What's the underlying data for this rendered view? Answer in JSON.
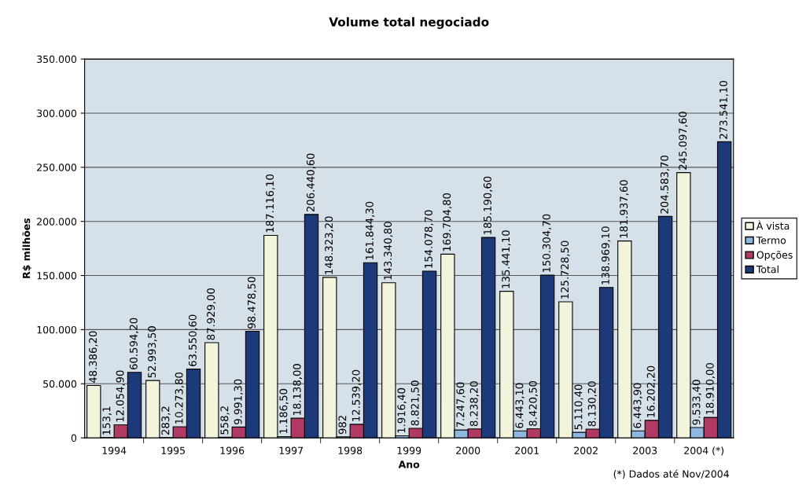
{
  "chart_data": {
    "type": "bar",
    "title": "Volume total negociado",
    "xlabel": "Ano",
    "ylabel": "R$ milhões",
    "categories": [
      "1994",
      "1995",
      "1996",
      "1997",
      "1998",
      "1999",
      "2000",
      "2001",
      "2002",
      "2003",
      "2004 (*)"
    ],
    "series": [
      {
        "name": "À vista",
        "color": "#f2f5dc",
        "values": [
          48386.2,
          52993.5,
          87929.0,
          187116.1,
          148323.2,
          143340.8,
          169704.8,
          135441.1,
          125728.5,
          181937.6,
          245097.6
        ],
        "value_labels": [
          "48.386,20",
          "52.993,50",
          "87.929,00",
          "187.116,10",
          "148.323,20",
          "143.340,80",
          "169.704,80",
          "135.441,10",
          "125.728,50",
          "181.937,60",
          "245.097,60"
        ]
      },
      {
        "name": "Termo",
        "color": "#8fb8e0",
        "values": [
          153.1,
          283.2,
          558.2,
          1186.5,
          982,
          1916.4,
          7247.6,
          6443.1,
          5110.4,
          6443.9,
          9533.4
        ],
        "value_labels": [
          "153,1",
          "283,2",
          "558,2",
          "1.186,50",
          "982",
          "1.916,40",
          "7.247,60",
          "6.443,10",
          "5.110,40",
          "6.443,90",
          "9.533,40"
        ]
      },
      {
        "name": "Opções",
        "color": "#b03a64",
        "values": [
          12054.9,
          10273.8,
          9991.3,
          18138.0,
          12539.2,
          8821.5,
          8238.2,
          8420.5,
          8130.2,
          16202.2,
          18910.0
        ],
        "value_labels": [
          "12.054,90",
          "10.273,80",
          "9.991,30",
          "18.138,00",
          "12.539,20",
          "8.821,50",
          "8.238,20",
          "8.420,50",
          "8.130,20",
          "16.202,20",
          "18.910,00"
        ]
      },
      {
        "name": "Total",
        "color": "#1c3a7a",
        "values": [
          60594.2,
          63550.6,
          98478.5,
          206440.6,
          161844.3,
          154078.7,
          185190.6,
          150304.7,
          138969.1,
          204583.7,
          273541.1
        ],
        "value_labels": [
          "60.594,20",
          "63.550,60",
          "98.478,50",
          "206.440,60",
          "161.844,30",
          "154.078,70",
          "185.190,60",
          "150.304,70",
          "138.969,10",
          "204.583,70",
          "273.541,10"
        ]
      }
    ],
    "ylim": [
      0,
      350000
    ],
    "yticks": [
      0,
      {
        "value": 50000,
        "label": "50.000"
      },
      {
        "value": 100000,
        "label": "100.000"
      },
      {
        "value": 150000,
        "label": "150.000"
      },
      {
        "value": 200000,
        "label": "200.000"
      },
      {
        "value": 250000,
        "label": "250.000"
      },
      {
        "value": 300000,
        "label": "300.000"
      },
      {
        "value": 350000,
        "label": "350.000"
      }
    ],
    "grid": "y",
    "legend": "right",
    "annotations": [
      "(*) Dados até Nov/2004"
    ]
  }
}
